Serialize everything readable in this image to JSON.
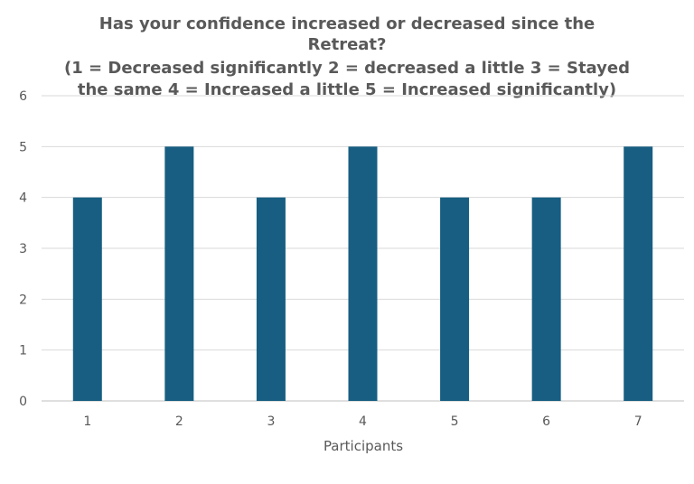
{
  "chart_data": {
    "type": "bar",
    "title_lines": [
      "Has your confidence increased or decreased since the",
      "Retreat?",
      "(1 = Decreased significantly 2 = decreased a little 3 = Stayed",
      "the same 4 = Increased a little 5 = Increased significantly)"
    ],
    "categories": [
      "1",
      "2",
      "3",
      "4",
      "5",
      "6",
      "7"
    ],
    "values": [
      4,
      5,
      4,
      5,
      4,
      4,
      5
    ],
    "xlabel": "Participants",
    "ylabel": "",
    "ylim": [
      0,
      6
    ],
    "yticks": [
      "0",
      "1",
      "2",
      "3",
      "4",
      "5",
      "6"
    ],
    "grid": true,
    "legend": "none",
    "bar_color": "#175e82"
  }
}
